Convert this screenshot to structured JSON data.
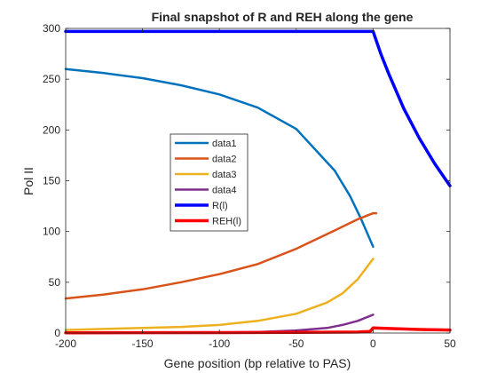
{
  "chart_data": {
    "type": "line",
    "title": "Final snapshot of R and REH along the gene",
    "xlabel": "Gene position (bp relative to PAS)",
    "ylabel": "Pol II",
    "xlim": [
      -200,
      50
    ],
    "ylim": [
      0,
      300
    ],
    "xticks": [
      -200,
      -150,
      -100,
      -50,
      0,
      50
    ],
    "yticks": [
      0,
      50,
      100,
      150,
      200,
      250,
      300
    ],
    "grid": false,
    "legend_position": "center-left",
    "series": [
      {
        "name": "data1",
        "color": "#0072BD",
        "width": 2.5,
        "points": [
          [
            -200,
            260
          ],
          [
            -175,
            256
          ],
          [
            -150,
            251
          ],
          [
            -125,
            244
          ],
          [
            -100,
            235
          ],
          [
            -75,
            222
          ],
          [
            -50,
            201
          ],
          [
            -25,
            160
          ],
          [
            -15,
            135
          ],
          [
            -8,
            113
          ],
          [
            0,
            85
          ]
        ]
      },
      {
        "name": "data2",
        "color": "#D95319",
        "width": 2.5,
        "points": [
          [
            -200,
            34
          ],
          [
            -175,
            38
          ],
          [
            -150,
            43
          ],
          [
            -125,
            50
          ],
          [
            -100,
            58
          ],
          [
            -75,
            68
          ],
          [
            -50,
            83
          ],
          [
            -25,
            101
          ],
          [
            -10,
            112
          ],
          [
            0,
            118
          ],
          [
            2,
            118
          ]
        ]
      },
      {
        "name": "data3",
        "color": "#EDB120",
        "width": 2.5,
        "points": [
          [
            -200,
            3
          ],
          [
            -175,
            4
          ],
          [
            -150,
            5
          ],
          [
            -125,
            6
          ],
          [
            -100,
            8
          ],
          [
            -75,
            12
          ],
          [
            -50,
            19
          ],
          [
            -30,
            30
          ],
          [
            -20,
            39
          ],
          [
            -10,
            53
          ],
          [
            0,
            73
          ]
        ]
      },
      {
        "name": "data4",
        "color": "#7E2F8E",
        "width": 2.5,
        "points": [
          [
            -200,
            0
          ],
          [
            -150,
            0.2
          ],
          [
            -100,
            0.5
          ],
          [
            -75,
            1
          ],
          [
            -50,
            2.5
          ],
          [
            -30,
            5
          ],
          [
            -20,
            8
          ],
          [
            -10,
            12
          ],
          [
            0,
            18
          ]
        ]
      },
      {
        "name": "R(l)",
        "color": "#0000FF",
        "width": 3.5,
        "points": [
          [
            -200,
            297
          ],
          [
            0,
            297
          ],
          [
            5,
            275
          ],
          [
            10,
            256
          ],
          [
            20,
            221
          ],
          [
            30,
            192
          ],
          [
            40,
            167
          ],
          [
            50,
            145
          ]
        ]
      },
      {
        "name": "REH(l)",
        "color": "#FF0000",
        "width": 3.5,
        "points": [
          [
            -200,
            0.3
          ],
          [
            -100,
            0.4
          ],
          [
            -50,
            0.6
          ],
          [
            -10,
            1.0
          ],
          [
            -2,
            1.5
          ],
          [
            0,
            5
          ],
          [
            10,
            4.5
          ],
          [
            30,
            3.5
          ],
          [
            50,
            3
          ]
        ]
      }
    ]
  }
}
